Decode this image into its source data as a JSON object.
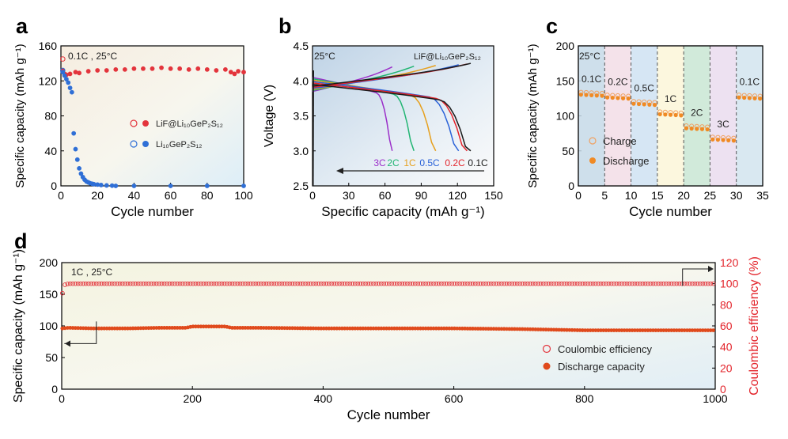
{
  "chart_data": [
    {
      "panel": "a",
      "type": "scatter",
      "condition": "0.1C , 25°C",
      "xlabel": "Cycle number",
      "ylabel": "Specific capacity (mAh g⁻¹)",
      "xlim": [
        0,
        100
      ],
      "ylim": [
        0,
        160
      ],
      "xticks": [
        "0",
        "20",
        "40",
        "60",
        "80",
        "100"
      ],
      "yticks": [
        "0",
        "40",
        "80",
        "120",
        "160"
      ],
      "legend_position": "center-right",
      "series": [
        {
          "name": "LiF@Li₁₀GeP₂S₁₂",
          "color": "#e3343c",
          "charge_x": [
            1
          ],
          "charge_y": [
            145
          ],
          "discharge_x": [
            1,
            2,
            3,
            5,
            8,
            10,
            15,
            20,
            25,
            30,
            35,
            40,
            45,
            50,
            55,
            60,
            65,
            70,
            75,
            80,
            85,
            90,
            93,
            95,
            97,
            100
          ],
          "discharge_y": [
            132,
            128,
            127,
            128,
            130,
            129,
            131,
            132,
            132,
            133,
            133,
            134,
            134,
            134,
            135,
            134,
            134,
            133,
            134,
            133,
            132,
            133,
            130,
            128,
            131,
            130
          ]
        },
        {
          "name": "Li₁₀GeP₂S₁₂",
          "color": "#2f6fd6",
          "charge_x": [
            1
          ],
          "charge_y": [
            132
          ],
          "discharge_x": [
            1,
            2,
            3,
            4,
            5,
            6,
            7,
            8,
            9,
            10,
            11,
            12,
            13,
            14,
            15,
            16,
            17,
            18,
            20,
            22,
            25,
            28,
            30,
            40,
            60,
            80,
            100
          ],
          "discharge_y": [
            130,
            126,
            122,
            118,
            112,
            107,
            60,
            42,
            30,
            20,
            14,
            10,
            7,
            5,
            4,
            3,
            2.5,
            2,
            1.5,
            1,
            0.5,
            0.3,
            0,
            0,
            0,
            0,
            0
          ]
        }
      ]
    },
    {
      "panel": "b",
      "type": "line",
      "condition": "25°C",
      "series_label": "LiF@Li₁₀GeP₂S₁₂",
      "xlabel": "Specific capacity (mAh g⁻¹)",
      "ylabel": "Voltage (V)",
      "xlim": [
        0,
        150
      ],
      "ylim": [
        2.5,
        4.5
      ],
      "xticks": [
        "0",
        "30",
        "60",
        "90",
        "120",
        "150"
      ],
      "yticks": [
        "2.5",
        "3.0",
        "3.5",
        "4.0",
        "4.5"
      ],
      "series": [
        {
          "name": "3C",
          "color": "#9b2fc9",
          "capacity": 66
        },
        {
          "name": "2C",
          "color": "#22b573",
          "capacity": 84
        },
        {
          "name": "1C",
          "color": "#e6a01e",
          "capacity": 102
        },
        {
          "name": "0.5C",
          "color": "#2a62d8",
          "capacity": 121
        },
        {
          "name": "0.2C",
          "color": "#e3242b",
          "capacity": 128
        },
        {
          "name": "0.1C",
          "color": "#1a1a1a",
          "capacity": 131
        }
      ]
    },
    {
      "panel": "c",
      "type": "scatter",
      "condition": "25°C",
      "xlabel": "Cycle number",
      "ylabel": "Specific capacity (mAh g⁻¹)",
      "xlim": [
        0,
        35
      ],
      "ylim": [
        0,
        200
      ],
      "xticks": [
        "0",
        "5",
        "10",
        "15",
        "20",
        "25",
        "30",
        "35"
      ],
      "yticks": [
        "0",
        "50",
        "100",
        "150",
        "200"
      ],
      "legend_position": "center-left",
      "series": [
        {
          "name": "Charge",
          "color": "#f0a060"
        },
        {
          "name": "Discharge",
          "color": "#f08a24"
        }
      ],
      "rates": [
        {
          "label": "0.1C",
          "capacity": 132,
          "band_color": "#c6d9e8"
        },
        {
          "label": "0.2C",
          "capacity": 128,
          "band_color": "#f2dde6"
        },
        {
          "label": "0.5C",
          "capacity": 119,
          "band_color": "#cfe2f2"
        },
        {
          "label": "1C",
          "capacity": 104,
          "band_color": "#fbf6d8"
        },
        {
          "label": "2C",
          "capacity": 84,
          "band_color": "#c9e6d4"
        },
        {
          "label": "3C",
          "capacity": 68,
          "band_color": "#eadcef"
        },
        {
          "label": "0.1C",
          "capacity": 128,
          "band_color": "#d2e4ef"
        }
      ]
    },
    {
      "panel": "d",
      "type": "scatter",
      "condition": "1C , 25°C",
      "xlabel": "Cycle number",
      "ylabel": "Specific capacity (mAh g⁻¹)",
      "ylabel_right": "Coulombic efficiency (%)",
      "xlim": [
        0,
        1000
      ],
      "ylim": [
        0,
        200
      ],
      "ylim_right": [
        0,
        120
      ],
      "xticks": [
        "0",
        "200",
        "400",
        "600",
        "800",
        "1000"
      ],
      "yticks": [
        "0",
        "50",
        "100",
        "150",
        "200"
      ],
      "yticks_right": [
        "0",
        "20",
        "40",
        "60",
        "80",
        "100",
        "120"
      ],
      "legend_position": "bottom-right",
      "series": [
        {
          "name": "Coulombic efficiency",
          "axis": "right",
          "color": "#e3343c",
          "x": [
            1,
            5,
            10,
            20,
            50,
            100,
            200,
            300,
            400,
            500,
            600,
            700,
            800,
            900,
            1000
          ],
          "y": [
            91,
            99,
            100,
            100,
            100,
            100,
            100,
            100,
            100,
            100,
            100,
            100,
            100,
            100,
            100
          ]
        },
        {
          "name": "Discharge capacity",
          "axis": "left",
          "color": "#e04a1c",
          "x": [
            1,
            10,
            50,
            100,
            150,
            190,
            200,
            250,
            260,
            300,
            400,
            500,
            600,
            700,
            800,
            900,
            1000
          ],
          "y": [
            96,
            97,
            96,
            96,
            97,
            97,
            99,
            99,
            97,
            97,
            96,
            96,
            96,
            95,
            93,
            93,
            93
          ]
        }
      ]
    }
  ],
  "labels": {
    "a": "a",
    "b": "b",
    "c": "c",
    "d": "d",
    "a_condition": "0.1C , 25°C",
    "b_condition": "25°C",
    "b_series_label": "LiF@Li₁₀GeP₂S₁₂",
    "c_condition": "25°C",
    "d_condition": "1C , 25°C"
  }
}
